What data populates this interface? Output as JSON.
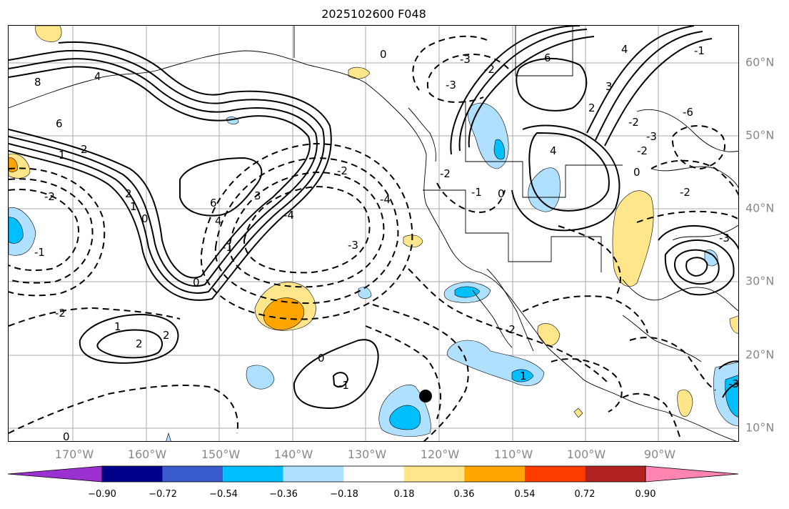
{
  "title": "2025102600 F048",
  "map": {
    "lon_labels": [
      "170°W",
      "160°W",
      "150°W",
      "140°W",
      "130°W",
      "120°W",
      "110°W",
      "100°W",
      "90°W"
    ],
    "lat_labels": [
      "60°N",
      "50°N",
      "40°N",
      "30°N",
      "20°N",
      "10°N"
    ],
    "contour_labels": [
      "8",
      "4",
      "6",
      "2",
      "1",
      "2",
      "1",
      "0",
      "-1",
      "-2",
      "-2",
      "6",
      "4",
      "3",
      "0",
      "-2",
      "-1",
      "1",
      "2",
      "-3",
      "-4",
      "-4",
      "-3",
      "-2",
      "2",
      "0",
      "-1",
      "-2",
      "-3",
      "0",
      "0",
      "6",
      "4",
      "4",
      "3",
      "2",
      "0",
      "-2",
      "-3",
      "-6",
      "-1",
      "-2",
      "-3",
      "-2",
      "0",
      "-1",
      "1",
      "-2",
      "-3"
    ],
    "marker": "storm-position-dot"
  },
  "colorbar": {
    "colors": [
      "#9b30d0",
      "#00008b",
      "#3a5bcc",
      "#00bfff",
      "#b0e0ff",
      "#ffffff",
      "#ffe68a",
      "#ffa500",
      "#ff3c00",
      "#b22222",
      "#ff85b0"
    ],
    "tick_labels": [
      "−0.90",
      "−0.72",
      "−0.54",
      "−0.36",
      "−0.18",
      "0.18",
      "0.36",
      "0.54",
      "0.72",
      "0.90"
    ]
  }
}
